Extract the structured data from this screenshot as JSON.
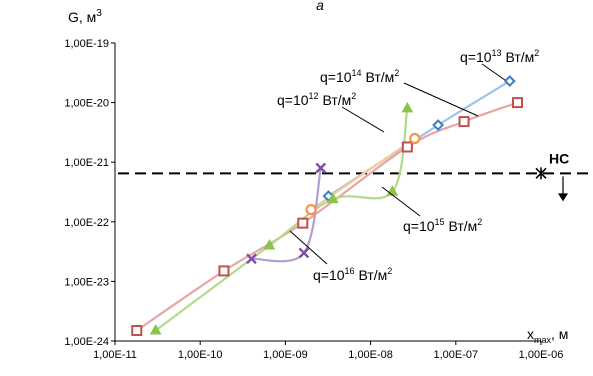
{
  "chart_data": {
    "type": "line",
    "panel_label": "a",
    "xlabel_main": "x",
    "xlabel_sub": "max",
    "xlabel_unit": ", м",
    "ylabel": "G, м",
    "ylabel_sup": "3",
    "x_scale": "log",
    "y_scale": "log",
    "xlim": [
      1e-11,
      1e-06
    ],
    "ylim": [
      1e-24,
      1e-19
    ],
    "x_ticks": [
      1e-11,
      1e-10,
      1e-09,
      1e-08,
      1e-07,
      1e-06
    ],
    "x_tick_labels": [
      "1,00E-11",
      "1,00E-10",
      "1,00E-09",
      "1,00E-08",
      "1,00E-07",
      "1,00E-06"
    ],
    "y_ticks": [
      1e-19,
      1e-20,
      1e-21,
      1e-22,
      1e-23,
      1e-24
    ],
    "y_tick_labels": [
      "1,00E-19",
      "1,00E-20",
      "1,00E-21",
      "1,00E-22",
      "1,00E-23",
      "1,00E-24"
    ],
    "grid": false,
    "legend": "none",
    "hline": {
      "y": 6.5e-22,
      "label": "НС"
    },
    "series": [
      {
        "name": "q=10^13 Вт/м^2",
        "marker": "diamond",
        "color": "#3d7bc4",
        "line_color": "#9dc3e6",
        "x": [
          3.2e-09,
          6.2e-08,
          4.3e-07
        ],
        "y": [
          2.7e-22,
          4.2e-21,
          2.3e-20
        ]
      },
      {
        "name": "q=10^14 Вт/м^2",
        "marker": "square",
        "color": "#c0504d",
        "line_color": "#e6a6a4",
        "x": [
          1.8e-11,
          1.9e-10,
          1.6e-09,
          2.7e-08,
          1.25e-07,
          5.3e-07
        ],
        "y": [
          1.5e-24,
          1.5e-23,
          9.5e-23,
          1.8e-21,
          4.8e-21,
          1e-20
        ]
      },
      {
        "name": "q=10^12 Вт/м^2",
        "marker": "circle",
        "color": "#f79646",
        "line_color": "#f8c99b",
        "x": [
          2e-09,
          3.3e-08
        ],
        "y": [
          1.6e-22,
          2.5e-21
        ]
      },
      {
        "name": "q=10^15 Вт/м^2",
        "marker": "triangle",
        "color": "#8cc34a",
        "line_color": "#b3d98a",
        "x": [
          3e-11,
          6.5e-10,
          3.6e-09,
          1.8e-08,
          2.7e-08
        ],
        "y": [
          1.5e-24,
          4e-23,
          2.4e-22,
          3.2e-22,
          8e-21
        ]
      },
      {
        "name": "q=10^16 Вт/м^2",
        "marker": "x",
        "color": "#7e4ea3",
        "line_color": "#b39ed1",
        "x": [
          4e-10,
          1.65e-09,
          2.6e-09
        ],
        "y": [
          2.4e-23,
          3e-23,
          8e-22
        ]
      }
    ],
    "annotations": [
      {
        "prefix": "q=10",
        "exp": "14",
        "suffix": " Вт/м",
        "exp2": "2"
      },
      {
        "prefix": "q=10",
        "exp": "13",
        "suffix": " Вт/м",
        "exp2": "2"
      },
      {
        "prefix": "q=10",
        "exp": "12",
        "suffix": " Вт/м",
        "exp2": "2"
      },
      {
        "prefix": "q=10",
        "exp": "15",
        "suffix": " Вт/м",
        "exp2": "2"
      },
      {
        "prefix": "q=10",
        "exp": "16",
        "suffix": " Вт/м",
        "exp2": "2"
      }
    ]
  }
}
